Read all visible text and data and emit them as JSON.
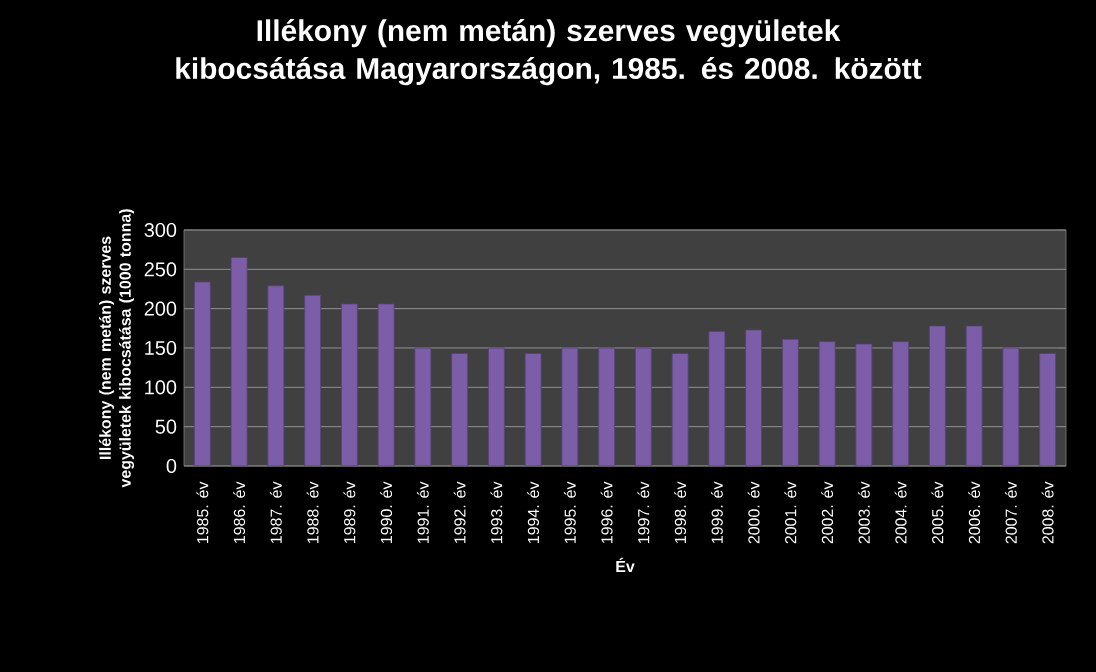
{
  "chart_data": {
    "type": "bar",
    "title": "Illékony (nem metán) szerves vegyületek kibocsátása Magyarországon, 1985. és 2008. között",
    "xlabel": "Év",
    "ylabel": "Illékony (nem metán) szerves vegyületek kibocsátása  (1000 tonna)",
    "categories": [
      "1985. év",
      "1986. év",
      "1987. év",
      "1988. év",
      "1989. év",
      "1990. év",
      "1991. év",
      "1992. év",
      "1993. év",
      "1994. év",
      "1995. év",
      "1996. év",
      "1997. év",
      "1998. év",
      "1999. év",
      "2000. év",
      "2001. év",
      "2002. év",
      "2003. év",
      "2004. év",
      "2005. év",
      "2006. év",
      "2007. év",
      "2008. év"
    ],
    "values": [
      234,
      265,
      229,
      217,
      206,
      206,
      150,
      143,
      150,
      143,
      150,
      150,
      150,
      143,
      171,
      173,
      161,
      158,
      155,
      158,
      178,
      178,
      150,
      143
    ],
    "color": "#7b5ea7",
    "ylim": [
      0,
      300
    ],
    "yticks": [
      0,
      50,
      100,
      150,
      200,
      250,
      300
    ],
    "grid": "y"
  }
}
